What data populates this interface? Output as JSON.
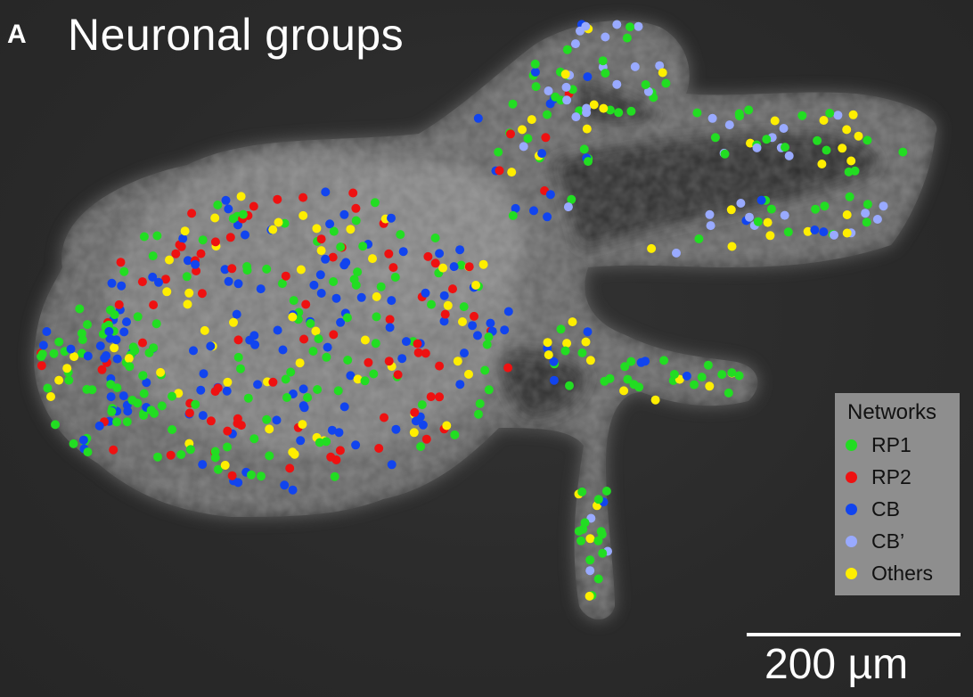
{
  "figure": {
    "panel_letter": "A",
    "title": "Neuronal groups"
  },
  "legend": {
    "title": "Networks",
    "items": [
      {
        "label": "RP1",
        "color": "#22dd22"
      },
      {
        "label": "RP2",
        "color": "#ee1111"
      },
      {
        "label": "CB",
        "color": "#1144ee"
      },
      {
        "label": "CB’",
        "color": "#99aaff"
      },
      {
        "label": "Others",
        "color": "#ffee00"
      }
    ]
  },
  "scale_bar": {
    "label": "200 µm"
  }
}
